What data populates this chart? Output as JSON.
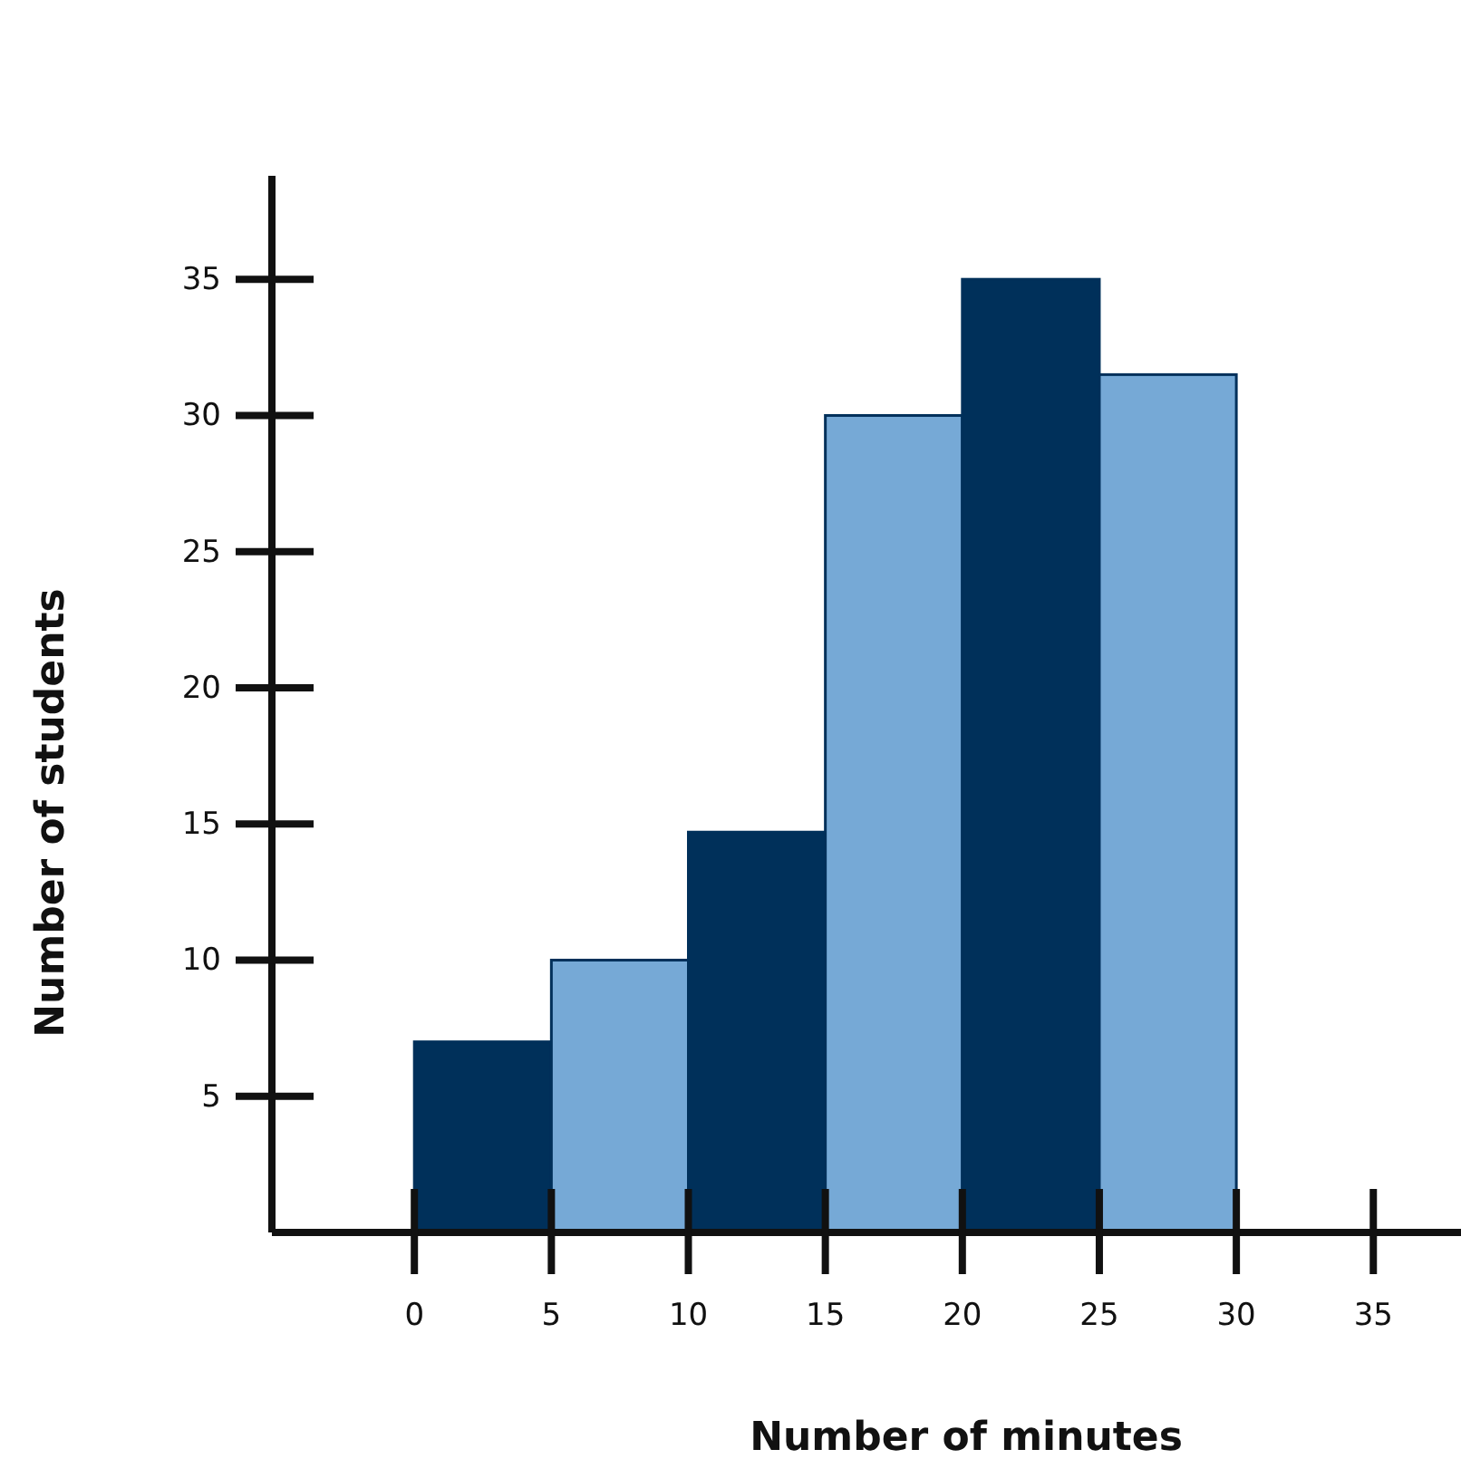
{
  "chart_data": {
    "type": "histogram",
    "xlabel": "Number of minutes",
    "ylabel": "Number of students",
    "bins": [
      0,
      5,
      10,
      15,
      20,
      25,
      30
    ],
    "values": [
      7,
      10,
      14.7,
      30,
      35,
      31.5
    ],
    "colors": [
      "#00305a",
      "#76a9d6",
      "#00305a",
      "#76a9d6",
      "#00305a",
      "#76a9d6"
    ],
    "xlim": [
      -5.2,
      38.2
    ],
    "ylim": [
      0,
      38.8
    ],
    "xticks": [
      0,
      5,
      10,
      15,
      20,
      25,
      30,
      35
    ],
    "yticks": [
      5,
      10,
      15,
      20,
      25,
      30,
      35
    ],
    "grid": false
  }
}
